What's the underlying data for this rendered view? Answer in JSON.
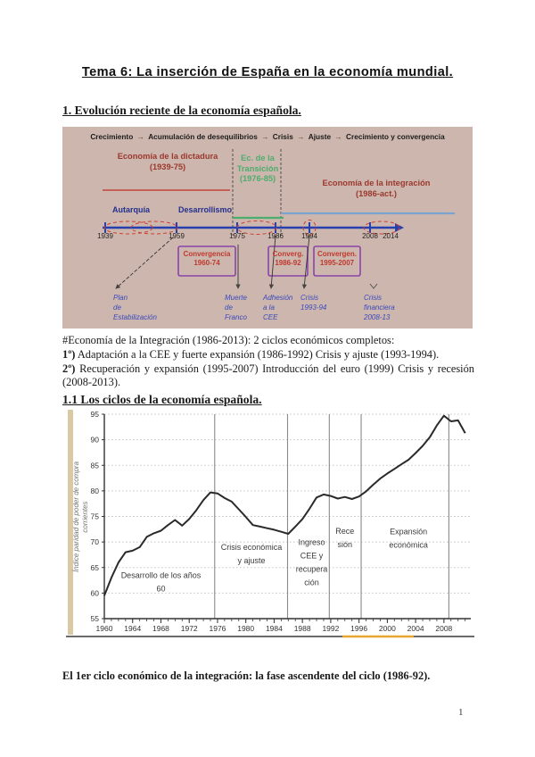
{
  "page": {
    "title": "Tema 6: La inserción de España en la economía mundial.",
    "section1_heading": "1. Evolución reciente de la economía española.",
    "section11_heading": "1.1 Los ciclos de la economía española.",
    "paragraph": {
      "intro": "#Economía de la Integración (1986-2013): 2 ciclos económicos completos:",
      "item1_prefix": "1º)",
      "item1_text": " Adaptación a la CEE y fuerte expansión (1986-1992) Crisis y ajuste (1993-1994).",
      "item2_prefix": "2º)",
      "item2_text": " Recuperación y expansión (1995-2007) Introducción del euro (1999) Crisis y recesión (2008-2013)."
    },
    "closing_line": "El 1er ciclo económico de la integración: la fase ascendente del ciclo (1986-92).",
    "page_number": "1"
  },
  "timeline": {
    "flow_items": [
      "Crecimiento",
      "Acumulación de desequilibrios",
      "Crisis",
      "Ajuste",
      "Crecimiento y convergencia"
    ],
    "flow_separator": "→",
    "eras": [
      {
        "label": "Economía de la dictadura",
        "years": "(1939-75)",
        "text_color": "#9b382e",
        "line_color": "#c4625a"
      },
      {
        "label": "Ec. de la Transición",
        "years": "(1976-85)",
        "text_color": "#4cae6e",
        "line_color": "#4cae6e"
      },
      {
        "label": "Economía de la integración",
        "years": "(1986-act.)",
        "text_color": "#9b382e",
        "line_color": "#7ba3cf"
      }
    ],
    "phases": [
      "Autarquía",
      "Desarrollismo"
    ],
    "axis_years": [
      "1939",
      "1959",
      "1975",
      "1986",
      "1994",
      "2008",
      "2014"
    ],
    "boxes": [
      {
        "line1": "Convergencia",
        "line2": "1960-74"
      },
      {
        "line1": "Converg.",
        "line2": "1986-92"
      },
      {
        "line1": "Convergen.",
        "line2": "1995-2007"
      }
    ],
    "events": [
      {
        "lines": [
          "Plan",
          "de",
          "Estabilización"
        ]
      },
      {
        "lines": [
          "Muerte",
          "de",
          "Franco"
        ]
      },
      {
        "lines": [
          "Adhesión",
          "a la",
          "CEE"
        ]
      },
      {
        "lines": [
          "Crisis",
          "1993-94"
        ]
      },
      {
        "lines": [
          "Crisis",
          "financiera",
          "2008-13"
        ]
      }
    ],
    "colors": {
      "background": "#cdb6ad",
      "axis_blue": "#2640b0",
      "navy": "#23308f",
      "purple_box": "#8a43ab",
      "box_text_red": "#bf3a2e",
      "event_blue": "#3a49bd",
      "dashed_red": "#d0402f"
    }
  },
  "chart_data": {
    "type": "line",
    "title": "",
    "xlabel": "",
    "ylabel_lines": [
      "Índice paridad de poder de compra",
      "corrientes"
    ],
    "ylim": [
      55,
      95
    ],
    "yticks": [
      55,
      60,
      65,
      70,
      75,
      80,
      85,
      90,
      95
    ],
    "xlim": [
      1960,
      2011.8
    ],
    "xticks": [
      1960,
      1964,
      1968,
      1972,
      1976,
      1980,
      1984,
      1988,
      1992,
      1996,
      2000,
      2004,
      2008
    ],
    "grid": "horizontal-dotted",
    "legend": "none",
    "dividers": [
      1975.6,
      1985.9,
      1991.8,
      1996.3,
      2008.7
    ],
    "annotations": [
      {
        "x": 1968,
        "y": 62.2,
        "lines": [
          "Desarrollo de los años",
          "60"
        ]
      },
      {
        "x": 1980.8,
        "y": 67.7,
        "lines": [
          "Crisis económica",
          "y ajuste"
        ]
      },
      {
        "x": 1989.3,
        "y": 66.0,
        "lines": [
          "Ingreso",
          "CEE y",
          "recupera",
          "ción"
        ]
      },
      {
        "x": 1994,
        "y": 70.8,
        "lines": [
          "Rece",
          "sión"
        ]
      },
      {
        "x": 2003,
        "y": 70.7,
        "lines": [
          "Expansión",
          "económica"
        ]
      }
    ],
    "series": [
      {
        "x": [
          1960,
          1961,
          1962,
          1963,
          1964,
          1965,
          1966,
          1967,
          1968,
          1969,
          1970,
          1971,
          1972,
          1973,
          1974,
          1975,
          1976,
          1977,
          1978,
          1979,
          1980,
          1981,
          1982,
          1983,
          1984,
          1985,
          1986,
          1987,
          1988,
          1989,
          1990,
          1991,
          1992,
          1993,
          1994,
          1995,
          1996,
          1997,
          1998,
          1999,
          2000,
          2001,
          2002,
          2003,
          2004,
          2005,
          2006,
          2007,
          2008,
          2009,
          2010,
          2011
        ],
        "values": [
          59.5,
          63.0,
          66.0,
          68.0,
          68.3,
          69.0,
          71.0,
          71.7,
          72.2,
          73.3,
          74.3,
          73.2,
          74.5,
          76.2,
          78.2,
          79.7,
          79.5,
          78.6,
          77.9,
          76.4,
          74.9,
          73.3,
          73.0,
          72.7,
          72.4,
          72.0,
          71.6,
          73.0,
          74.5,
          76.5,
          78.7,
          79.3,
          79.0,
          78.5,
          78.8,
          78.4,
          78.9,
          79.9,
          81.2,
          82.4,
          83.4,
          84.3,
          85.2,
          86.1,
          87.4,
          88.8,
          90.5,
          92.8,
          94.7,
          93.6,
          93.8,
          91.3
        ]
      }
    ]
  }
}
